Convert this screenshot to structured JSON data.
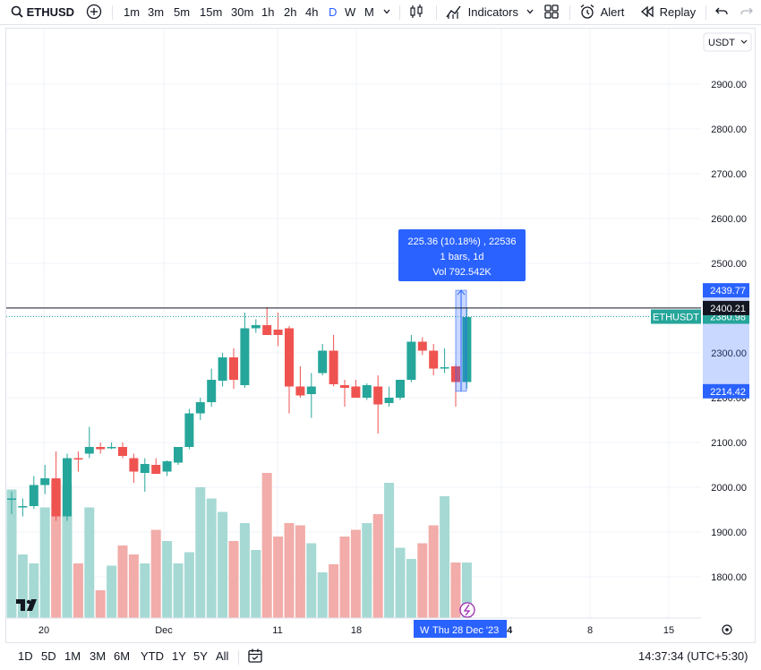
{
  "toolbar": {
    "symbol": "ETHUSD",
    "intervals": [
      "1m",
      "3m",
      "5m",
      "15m",
      "30m",
      "1h",
      "2h",
      "4h",
      "D",
      "W",
      "M"
    ],
    "active_interval": "D",
    "indicators_label": "Indicators",
    "alert_label": "Alert",
    "replay_label": "Replay"
  },
  "price_axis": {
    "currency": "USDT",
    "ticks": [
      "2900.00",
      "2800.00",
      "2700.00",
      "2600.00",
      "2500.00",
      "2400.00",
      "2300.00",
      "2200.00",
      "2100.00",
      "2000.00",
      "1900.00",
      "1800.00"
    ]
  },
  "badges": {
    "upper": "2439.77",
    "crosshair": "2400.21",
    "symbol_label": "ETHUSDT",
    "last_price": "2380.98",
    "lower": "2214.42"
  },
  "measure_tooltip": {
    "line1": "225.36 (10.18%) , 22536",
    "line2": "1 bars, 1d",
    "line3": "Vol 792.542K"
  },
  "time_axis": {
    "ticks": [
      "20",
      "Dec",
      "11",
      "18",
      "2024",
      "8",
      "15"
    ],
    "crosshair_date": "Thu 28 Dec '23",
    "crosshair_prefix": "W"
  },
  "bottom_bar": {
    "ranges": [
      "1D",
      "5D",
      "1M",
      "3M",
      "6M",
      "YTD",
      "1Y",
      "5Y",
      "All"
    ],
    "clock": "14:37:34 (UTC+5:30)"
  },
  "colors": {
    "up": "#26a69a",
    "down": "#ef5350",
    "up_volume": "#a6d9d4",
    "down_volume": "#f2aca9",
    "accent": "#2962ff",
    "last_price_badge": "#26a69a"
  },
  "chart_data": {
    "type": "candlestick",
    "ylim": [
      1700,
      2950
    ],
    "candles": [
      {
        "o": 1975,
        "h": 1990,
        "l": 1940,
        "c": 1975
      },
      {
        "o": 1955,
        "h": 1975,
        "l": 1935,
        "c": 1958
      },
      {
        "o": 1958,
        "h": 2025,
        "l": 1952,
        "c": 2005
      },
      {
        "o": 2005,
        "h": 2050,
        "l": 1985,
        "c": 2020
      },
      {
        "o": 2020,
        "h": 2080,
        "l": 1925,
        "c": 1935
      },
      {
        "o": 1935,
        "h": 2075,
        "l": 1925,
        "c": 2065
      },
      {
        "o": 2065,
        "h": 2080,
        "l": 2035,
        "c": 2062
      },
      {
        "o": 2075,
        "h": 2135,
        "l": 2065,
        "c": 2090
      },
      {
        "o": 2090,
        "h": 2100,
        "l": 2075,
        "c": 2085
      },
      {
        "o": 2090,
        "h": 2100,
        "l": 2085,
        "c": 2090
      },
      {
        "o": 2090,
        "h": 2100,
        "l": 2065,
        "c": 2070
      },
      {
        "o": 2065,
        "h": 2075,
        "l": 2010,
        "c": 2035
      },
      {
        "o": 2032,
        "h": 2065,
        "l": 1990,
        "c": 2052
      },
      {
        "o": 2050,
        "h": 2065,
        "l": 2030,
        "c": 2030
      },
      {
        "o": 2035,
        "h": 2060,
        "l": 2025,
        "c": 2058
      },
      {
        "o": 2055,
        "h": 2085,
        "l": 2050,
        "c": 2090
      },
      {
        "o": 2090,
        "h": 2175,
        "l": 2085,
        "c": 2165
      },
      {
        "o": 2165,
        "h": 2200,
        "l": 2150,
        "c": 2190
      },
      {
        "o": 2190,
        "h": 2265,
        "l": 2180,
        "c": 2240
      },
      {
        "o": 2238,
        "h": 2300,
        "l": 2225,
        "c": 2290
      },
      {
        "o": 2290,
        "h": 2310,
        "l": 2220,
        "c": 2240
      },
      {
        "o": 2228,
        "h": 2390,
        "l": 2222,
        "c": 2355
      },
      {
        "o": 2355,
        "h": 2375,
        "l": 2345,
        "c": 2362
      },
      {
        "o": 2362,
        "h": 2402,
        "l": 2350,
        "c": 2340
      },
      {
        "o": 2352,
        "h": 2390,
        "l": 2315,
        "c": 2340
      },
      {
        "o": 2355,
        "h": 2360,
        "l": 2165,
        "c": 2225
      },
      {
        "o": 2225,
        "h": 2270,
        "l": 2200,
        "c": 2205
      },
      {
        "o": 2208,
        "h": 2255,
        "l": 2155,
        "c": 2225
      },
      {
        "o": 2255,
        "h": 2320,
        "l": 2250,
        "c": 2305
      },
      {
        "o": 2305,
        "h": 2340,
        "l": 2225,
        "c": 2230
      },
      {
        "o": 2228,
        "h": 2240,
        "l": 2180,
        "c": 2222
      },
      {
        "o": 2225,
        "h": 2240,
        "l": 2200,
        "c": 2200
      },
      {
        "o": 2200,
        "h": 2232,
        "l": 2195,
        "c": 2228
      },
      {
        "o": 2225,
        "h": 2250,
        "l": 2120,
        "c": 2185
      },
      {
        "o": 2188,
        "h": 2225,
        "l": 2180,
        "c": 2200
      },
      {
        "o": 2200,
        "h": 2240,
        "l": 2195,
        "c": 2240
      },
      {
        "o": 2240,
        "h": 2340,
        "l": 2235,
        "c": 2325
      },
      {
        "o": 2325,
        "h": 2335,
        "l": 2295,
        "c": 2305
      },
      {
        "o": 2305,
        "h": 2320,
        "l": 2250,
        "c": 2265
      },
      {
        "o": 2265,
        "h": 2310,
        "l": 2255,
        "c": 2268
      },
      {
        "o": 2270,
        "h": 2275,
        "l": 2180,
        "c": 2235
      },
      {
        "o": 2235,
        "h": 2400,
        "l": 2220,
        "c": 2380
      }
    ],
    "volumes": [
      1995,
      1850,
      1830,
      1955,
      2015,
      2005,
      1830,
      1955,
      1770,
      1825,
      1870,
      1850,
      1830,
      1905,
      1880,
      1830,
      1855,
      2000,
      1975,
      1945,
      1880,
      1920,
      1860,
      2032,
      1890,
      1920,
      1915,
      1875,
      1810,
      1828,
      1890,
      1905,
      1920,
      1940,
      2010,
      1865,
      1840,
      1875,
      1915,
      1980,
      1832,
      1832
    ],
    "measure": {
      "from": 2214.42,
      "to": 2439.77,
      "change": 225.36,
      "percent": 10.18
    }
  }
}
